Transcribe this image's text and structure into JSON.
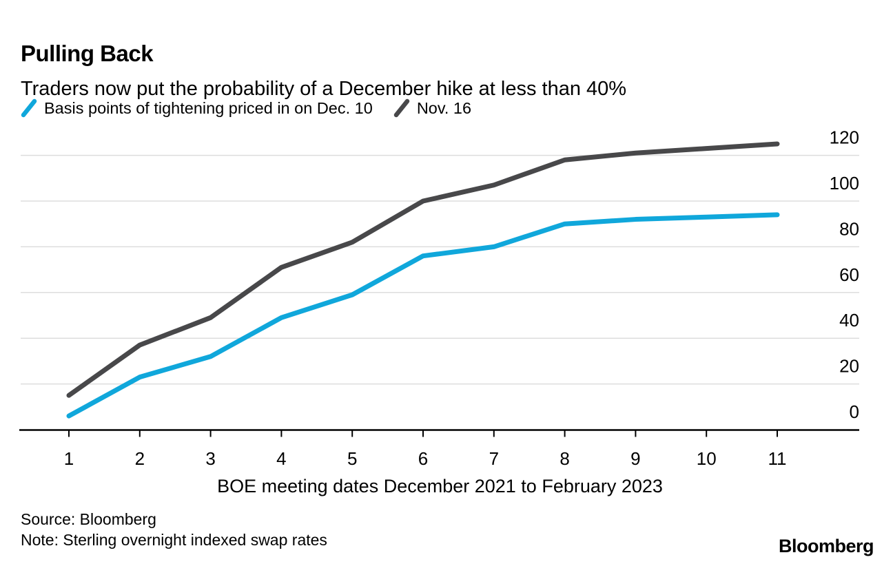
{
  "header": {
    "title": "Pulling Back",
    "subtitle": "Traders now put the probability of a December hike at less than 40%"
  },
  "footer": {
    "source": "Source: Bloomberg",
    "note": "Note: Sterling overnight indexed swap rates",
    "logo": "Bloomberg"
  },
  "colors": {
    "background": "#FFFFFF",
    "gridline": "#DDDDDD",
    "axis": "#000000",
    "text": "#000000",
    "series_cyan": "#10A7DB",
    "series_gray": "#48484A"
  },
  "chart_data": {
    "type": "line",
    "title": "Pulling Back",
    "subtitle": "Traders now put the probability of a December hike at less than 40%",
    "xlabel": "BOE meeting dates December 2021 to February 2023",
    "ylabel": "",
    "categories": [
      1,
      2,
      3,
      4,
      5,
      6,
      7,
      8,
      9,
      10,
      11
    ],
    "yticks": [
      0,
      20,
      40,
      60,
      80,
      100,
      120
    ],
    "ylim": [
      0,
      130
    ],
    "grid": "horizontal",
    "legend_position": "top-left",
    "y_axis_side": "right",
    "series": [
      {
        "name": "Basis points of tightening priced in on Dec. 10",
        "color": "#10A7DB",
        "values": [
          6,
          23,
          32,
          49,
          59,
          76,
          80,
          90,
          92,
          93,
          94
        ]
      },
      {
        "name": "Nov. 16",
        "color": "#48484A",
        "values": [
          15,
          37,
          49,
          71,
          82,
          100,
          107,
          118,
          121,
          123,
          125
        ]
      }
    ]
  }
}
